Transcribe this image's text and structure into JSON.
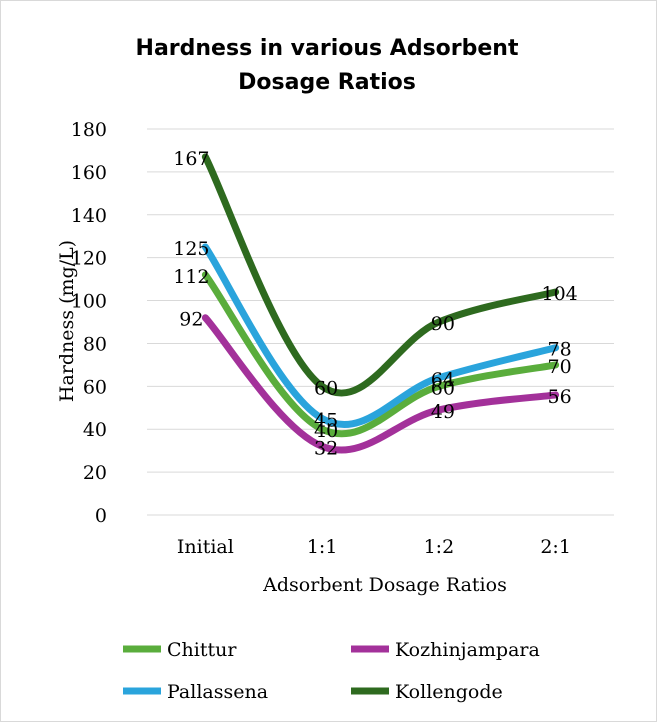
{
  "chart_data": {
    "type": "line",
    "title_lines": [
      "Hardness in various Adsorbent",
      "Dosage Ratios"
    ],
    "xlabel": "Adsorbent Dosage  Ratios",
    "ylabel": "Hardness (mg/L)",
    "categories": [
      "Initial",
      "1:1",
      "1:2",
      "2:1"
    ],
    "ylim": [
      0,
      180
    ],
    "yticks": [
      0,
      20,
      40,
      60,
      80,
      100,
      120,
      140,
      160,
      180
    ],
    "grid": true,
    "smooth": true,
    "legend_position": "bottom",
    "series": [
      {
        "name": "Chittur",
        "color": "#5aad3c",
        "values": [
          112,
          40,
          60,
          70
        ]
      },
      {
        "name": "Kozhinjampara",
        "color": "#a3319a",
        "values": [
          92,
          32,
          49,
          56
        ]
      },
      {
        "name": "Pallassena",
        "color": "#2aa4dc",
        "values": [
          125,
          45,
          64,
          78
        ]
      },
      {
        "name": "Kollengode",
        "color": "#2e6a1f",
        "values": [
          167,
          60,
          90,
          104
        ]
      }
    ]
  }
}
